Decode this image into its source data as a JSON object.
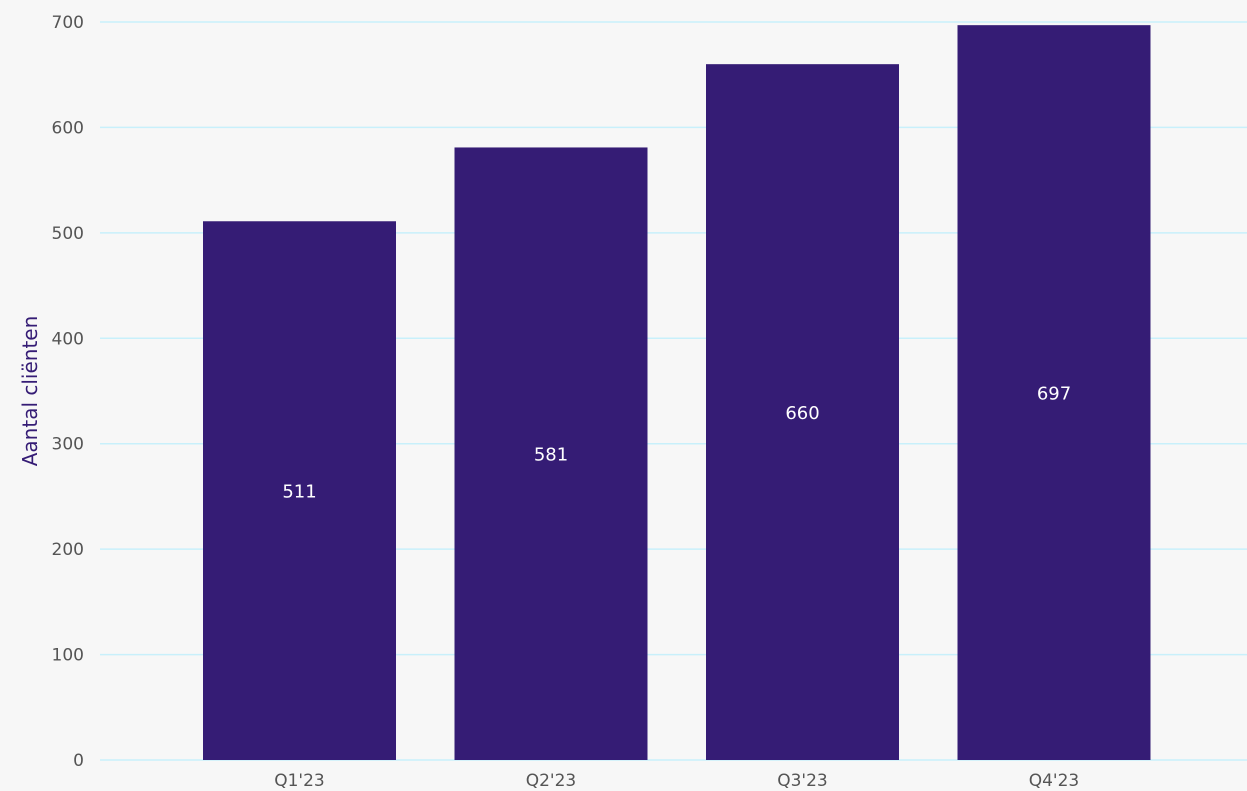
{
  "chart_data": {
    "type": "bar",
    "categories": [
      "Q1'23",
      "Q2'23",
      "Q3'23",
      "Q4'23"
    ],
    "values": [
      511,
      581,
      660,
      697
    ],
    "data_labels": [
      "511",
      "581",
      "660",
      "697"
    ],
    "title": "",
    "xlabel": "",
    "ylabel": "Aantal cliënten",
    "ylim": [
      0,
      700
    ],
    "yticks": [
      0,
      100,
      200,
      300,
      400,
      500,
      600,
      700
    ],
    "ytick_labels": [
      "0",
      "100",
      "200",
      "300",
      "400",
      "500",
      "600",
      "700"
    ],
    "grid": true,
    "legend": "none",
    "colors": {
      "bar": "#351c75",
      "grid": "#c8f0fb",
      "background": "#f7f7f7",
      "axis_title": "#351c75",
      "value_label": "#ffffff",
      "tick_label": "#555555"
    }
  }
}
